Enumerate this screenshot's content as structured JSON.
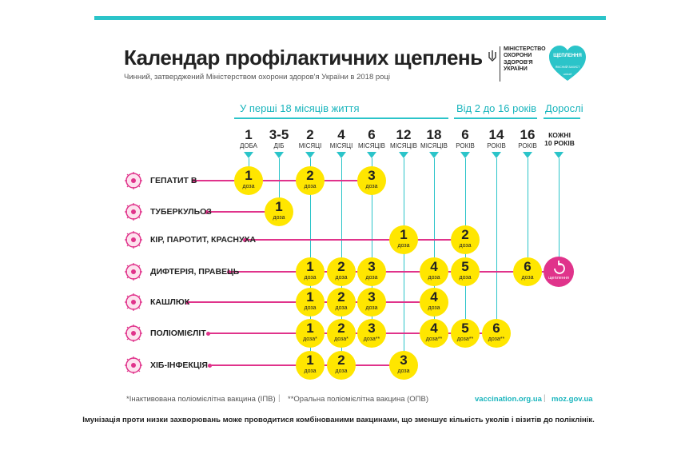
{
  "header": {
    "title": "Календар профілактичних щеплень",
    "subtitle": "Чинний, затверджений Міністерством охорони здоров'я України в 2018 році",
    "ministry": "МІНІСТЕРСТВО\nОХОРОНИ\nЗДОРОВ'Я\nУКРАЇНИ",
    "badge_title": "ЩЕПЛЕННЯ",
    "badge_sub": "ЯКІСНИЙ ЗАХИСТ",
    "badge_org": "unicef"
  },
  "groups": [
    "У перші 18 місяців життя",
    "Від 2 до 16 років",
    "Дорослі"
  ],
  "ages": [
    {
      "n": "1",
      "u": "ДОБА"
    },
    {
      "n": "3-5",
      "u": "ДІБ"
    },
    {
      "n": "2",
      "u": "МІСЯЦІ"
    },
    {
      "n": "4",
      "u": "МІСЯЦІ"
    },
    {
      "n": "6",
      "u": "МІСЯЦІВ"
    },
    {
      "n": "12",
      "u": "МІСЯЦІВ"
    },
    {
      "n": "18",
      "u": "МІСЯЦІВ"
    },
    {
      "n": "6",
      "u": "РОКІВ"
    },
    {
      "n": "14",
      "u": "РОКІВ"
    },
    {
      "n": "16",
      "u": "РОКІВ"
    }
  ],
  "adult_age": "КОЖНІ\n10 РОКІВ",
  "dose_word": "доза",
  "revaccination_label": "щеплення",
  "rows": [
    {
      "label": "ГЕПАТИТ В",
      "icon": "hepatitis-virus-icon",
      "doses": [
        {
          "col": 0,
          "n": "1",
          "mark": ""
        },
        {
          "col": 2,
          "n": "2",
          "mark": ""
        },
        {
          "col": 4,
          "n": "3",
          "mark": ""
        }
      ]
    },
    {
      "label": "ТУБЕРКУЛЬОЗ",
      "icon": "tuberculosis-bacteria-icon",
      "doses": [
        {
          "col": 1,
          "n": "1",
          "mark": ""
        }
      ]
    },
    {
      "label": "КІР, ПАРОТИТ, КРАСНУХА",
      "icon": "measles-virus-icon",
      "doses": [
        {
          "col": 5,
          "n": "1",
          "mark": ""
        },
        {
          "col": 7,
          "n": "2",
          "mark": ""
        }
      ]
    },
    {
      "label": "ДИФТЕРІЯ, ПРАВЕЦЬ",
      "icon": "diphtheria-bacteria-icon",
      "doses": [
        {
          "col": 2,
          "n": "1",
          "mark": ""
        },
        {
          "col": 3,
          "n": "2",
          "mark": ""
        },
        {
          "col": 4,
          "n": "3",
          "mark": ""
        },
        {
          "col": 6,
          "n": "4",
          "mark": ""
        },
        {
          "col": 7,
          "n": "5",
          "mark": ""
        },
        {
          "col": 9,
          "n": "6",
          "mark": ""
        }
      ],
      "revaccination": true
    },
    {
      "label": "КАШЛЮК",
      "icon": "pertussis-bacteria-icon",
      "doses": [
        {
          "col": 2,
          "n": "1",
          "mark": ""
        },
        {
          "col": 3,
          "n": "2",
          "mark": ""
        },
        {
          "col": 4,
          "n": "3",
          "mark": ""
        },
        {
          "col": 6,
          "n": "4",
          "mark": ""
        }
      ]
    },
    {
      "label": "ПОЛІОМІЄЛІТ",
      "icon": "polio-virus-icon",
      "doses": [
        {
          "col": 2,
          "n": "1",
          "mark": "*"
        },
        {
          "col": 3,
          "n": "2",
          "mark": "*"
        },
        {
          "col": 4,
          "n": "3",
          "mark": "**"
        },
        {
          "col": 6,
          "n": "4",
          "mark": "**"
        },
        {
          "col": 7,
          "n": "5",
          "mark": "**"
        },
        {
          "col": 8,
          "n": "6",
          "mark": "**"
        }
      ]
    },
    {
      "label": "ХІБ-ІНФЕКЦІЯ",
      "icon": "hib-bacteria-icon",
      "doses": [
        {
          "col": 2,
          "n": "1",
          "mark": ""
        },
        {
          "col": 3,
          "n": "2",
          "mark": ""
        },
        {
          "col": 5,
          "n": "3",
          "mark": ""
        }
      ]
    }
  ],
  "footer": {
    "note1": "*Інактивована поліомієлітна вакцина (ІПВ)",
    "note2": "**Оральна поліомієлітна вакцина (ОПВ)",
    "link1": "vaccination.org.ua",
    "link2": "moz.gov.ua",
    "bottom": "Імунізація проти низки захворювань може проводитися комбінованими вакцинами, що зменшує кількість уколів і візитів до поліклінік."
  },
  "colors": {
    "teal": "#2bc4c9",
    "magenta": "#e0338b",
    "yellow": "#ffe600"
  }
}
